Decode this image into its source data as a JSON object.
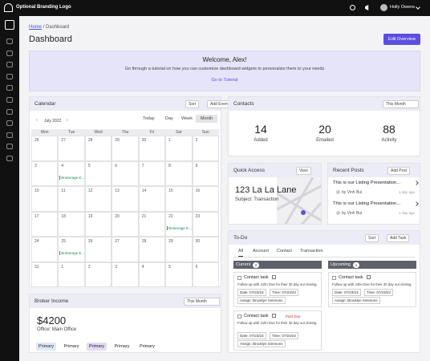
{
  "topbar": {
    "logo": "Optional Branding Logo",
    "user": "Holly Owens"
  },
  "breadcrumb": {
    "home": "Home",
    "separator": "/",
    "current": "Dashboard"
  },
  "title": "Dashboard",
  "edit_button": "Edit Overview",
  "welcome": {
    "title": "Welcome, Alex!",
    "text": "Go through a tutorial on how you can customize dashboard widgets to personalize them to your needs",
    "link": "Go to Tutorial"
  },
  "calendar": {
    "title": "Calendar",
    "sort": "Sort",
    "add": "Add Event",
    "month": "July 2022",
    "views": [
      "Today",
      "Day",
      "Week",
      "Month"
    ],
    "weekdays": [
      "Mon",
      "Tue",
      "Wed",
      "Thu",
      "Fri",
      "Sat",
      "Sun"
    ],
    "weeks": [
      [
        {
          "day": 26
        },
        {
          "day": 27
        },
        {
          "day": 28
        },
        {
          "day": 29
        },
        {
          "day": 30
        },
        {
          "day": 1
        },
        {
          "day": 2
        }
      ],
      [
        {
          "day": 3
        },
        {
          "day": 4,
          "event": "Brokerage E..."
        },
        {
          "day": 5
        },
        {
          "day": 6
        },
        {
          "day": 7
        },
        {
          "day": 8
        },
        {
          "day": 9
        }
      ],
      [
        {
          "day": 10
        },
        {
          "day": 11
        },
        {
          "day": 12
        },
        {
          "day": 13
        },
        {
          "day": 14
        },
        {
          "day": 15
        },
        {
          "day": 16
        }
      ],
      [
        {
          "day": 17
        },
        {
          "day": 18
        },
        {
          "day": 19
        },
        {
          "day": 20
        },
        {
          "day": 21
        },
        {
          "day": 22,
          "event": "Brokerage E..."
        },
        {
          "day": 23
        }
      ],
      [
        {
          "day": 24
        },
        {
          "day": 25,
          "event": "Brokerage E..."
        },
        {
          "day": 26
        },
        {
          "day": 27
        },
        {
          "day": 28
        },
        {
          "day": 29
        },
        {
          "day": 30
        }
      ],
      [
        {
          "day": 31
        },
        {
          "day": 1
        },
        {
          "day": 2
        },
        {
          "day": 3
        },
        {
          "day": 4
        },
        {
          "day": 5
        },
        {
          "day": 6
        }
      ]
    ]
  },
  "contacts": {
    "title": "Contacts",
    "period": "This Month",
    "stats": [
      {
        "value": 14,
        "label": "Added"
      },
      {
        "value": 20,
        "label": "Emailed"
      },
      {
        "value": 88,
        "label": "Activity"
      }
    ]
  },
  "quick_access": {
    "title": "Quick Access",
    "view": "View",
    "address": "123 La La Lane",
    "subject": "Subject: Transaction"
  },
  "recent_posts": {
    "title": "Recent Posts",
    "add": "Add Post",
    "posts": [
      {
        "title": "This is our Listing Presentation...",
        "author": "by Vinh Bui",
        "time": "1 day ago"
      },
      {
        "title": "This is our Listing Presentation...",
        "author": "by Vinh Bui",
        "time": "1 day ago"
      }
    ]
  },
  "todo": {
    "title": "To-Do",
    "sort": "Sort",
    "add": "Add Task",
    "tabs": [
      "All",
      "Account",
      "Contact",
      "Transaction"
    ],
    "columns": [
      {
        "name": "Current",
        "count": 2,
        "tasks": [
          {
            "title": "Contact task",
            "text": "Follow up with John Doe for their 30 day out closing.",
            "date": "Date: 07/23/23",
            "time": "Time: 07/23/23",
            "assign": "Assign: Brooklyn Simmons"
          },
          {
            "title": "Contact task",
            "status": "Past Due",
            "text": "Follow up with John Doe for their 30 day out closing.",
            "date": "Date: 07/23/23",
            "time": "Time: 07/23/23",
            "assign": "Assign: Brooklyn Simmons"
          }
        ]
      },
      {
        "name": "Upcoming",
        "count": 1,
        "tasks": [
          {
            "title": "Contact task",
            "text": "Follow up with John Doe for their 30 day out closing.",
            "date": "Date: 07/23/23",
            "time": "Time: 07/23/23",
            "assign": "Assign: Brooklyn Simmons"
          }
        ]
      }
    ]
  },
  "broker_income": {
    "title": "Broker Income",
    "period": "This Month",
    "amount": "$4200",
    "office": "Office: Main Office",
    "tags": [
      "Primary",
      "Primary",
      "Primary",
      "Primary",
      "Primary"
    ]
  }
}
